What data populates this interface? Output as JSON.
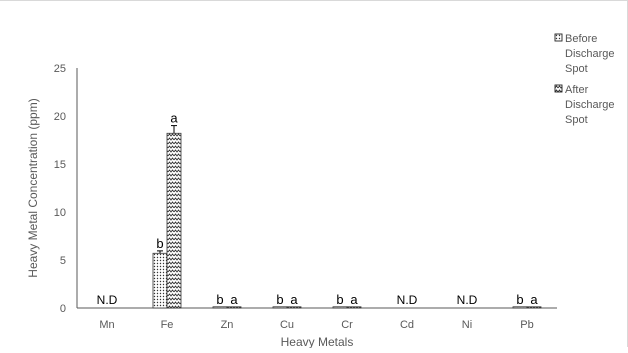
{
  "chart_data": {
    "type": "bar",
    "xlabel": "Heavy Metals",
    "ylabel": "Heavy Metal Concentration (ppm)",
    "ylim": [
      0,
      25
    ],
    "yticks": [
      "0",
      "5",
      "10",
      "15",
      "20",
      "25"
    ],
    "grid": false,
    "legend_position": "right",
    "categories": [
      "Mn",
      "Fe",
      "Zn",
      "Cu",
      "Cr",
      "Cd",
      "Ni",
      "Pb"
    ],
    "series": [
      {
        "name": "Before Discharge Spot",
        "pattern": "dots",
        "values": [
          null,
          5.7,
          0.05,
          0.05,
          0.05,
          null,
          null,
          0.05
        ],
        "errors": [
          null,
          0.25,
          null,
          null,
          null,
          null,
          null,
          null
        ],
        "labels": [
          null,
          "b",
          "b",
          "b",
          "b",
          null,
          null,
          "b"
        ]
      },
      {
        "name": "After Discharge Spot",
        "pattern": "zigzag",
        "values": [
          null,
          18.2,
          0.1,
          0.1,
          0.1,
          null,
          null,
          0.1
        ],
        "errors": [
          null,
          0.8,
          null,
          null,
          null,
          null,
          null,
          null
        ],
        "labels": [
          null,
          "a",
          "a",
          "a",
          "a",
          null,
          null,
          "a"
        ]
      }
    ],
    "category_annotations": [
      "N.D",
      null,
      null,
      null,
      null,
      "N.D",
      "N.D",
      null
    ],
    "legend_lines": [
      [
        "Before",
        "Discharge",
        "Spot"
      ],
      [
        "After",
        "Discharge",
        "Spot"
      ]
    ],
    "colors": {
      "axis": "#595959",
      "text": "#595959",
      "bar_stroke": "#333333"
    }
  }
}
